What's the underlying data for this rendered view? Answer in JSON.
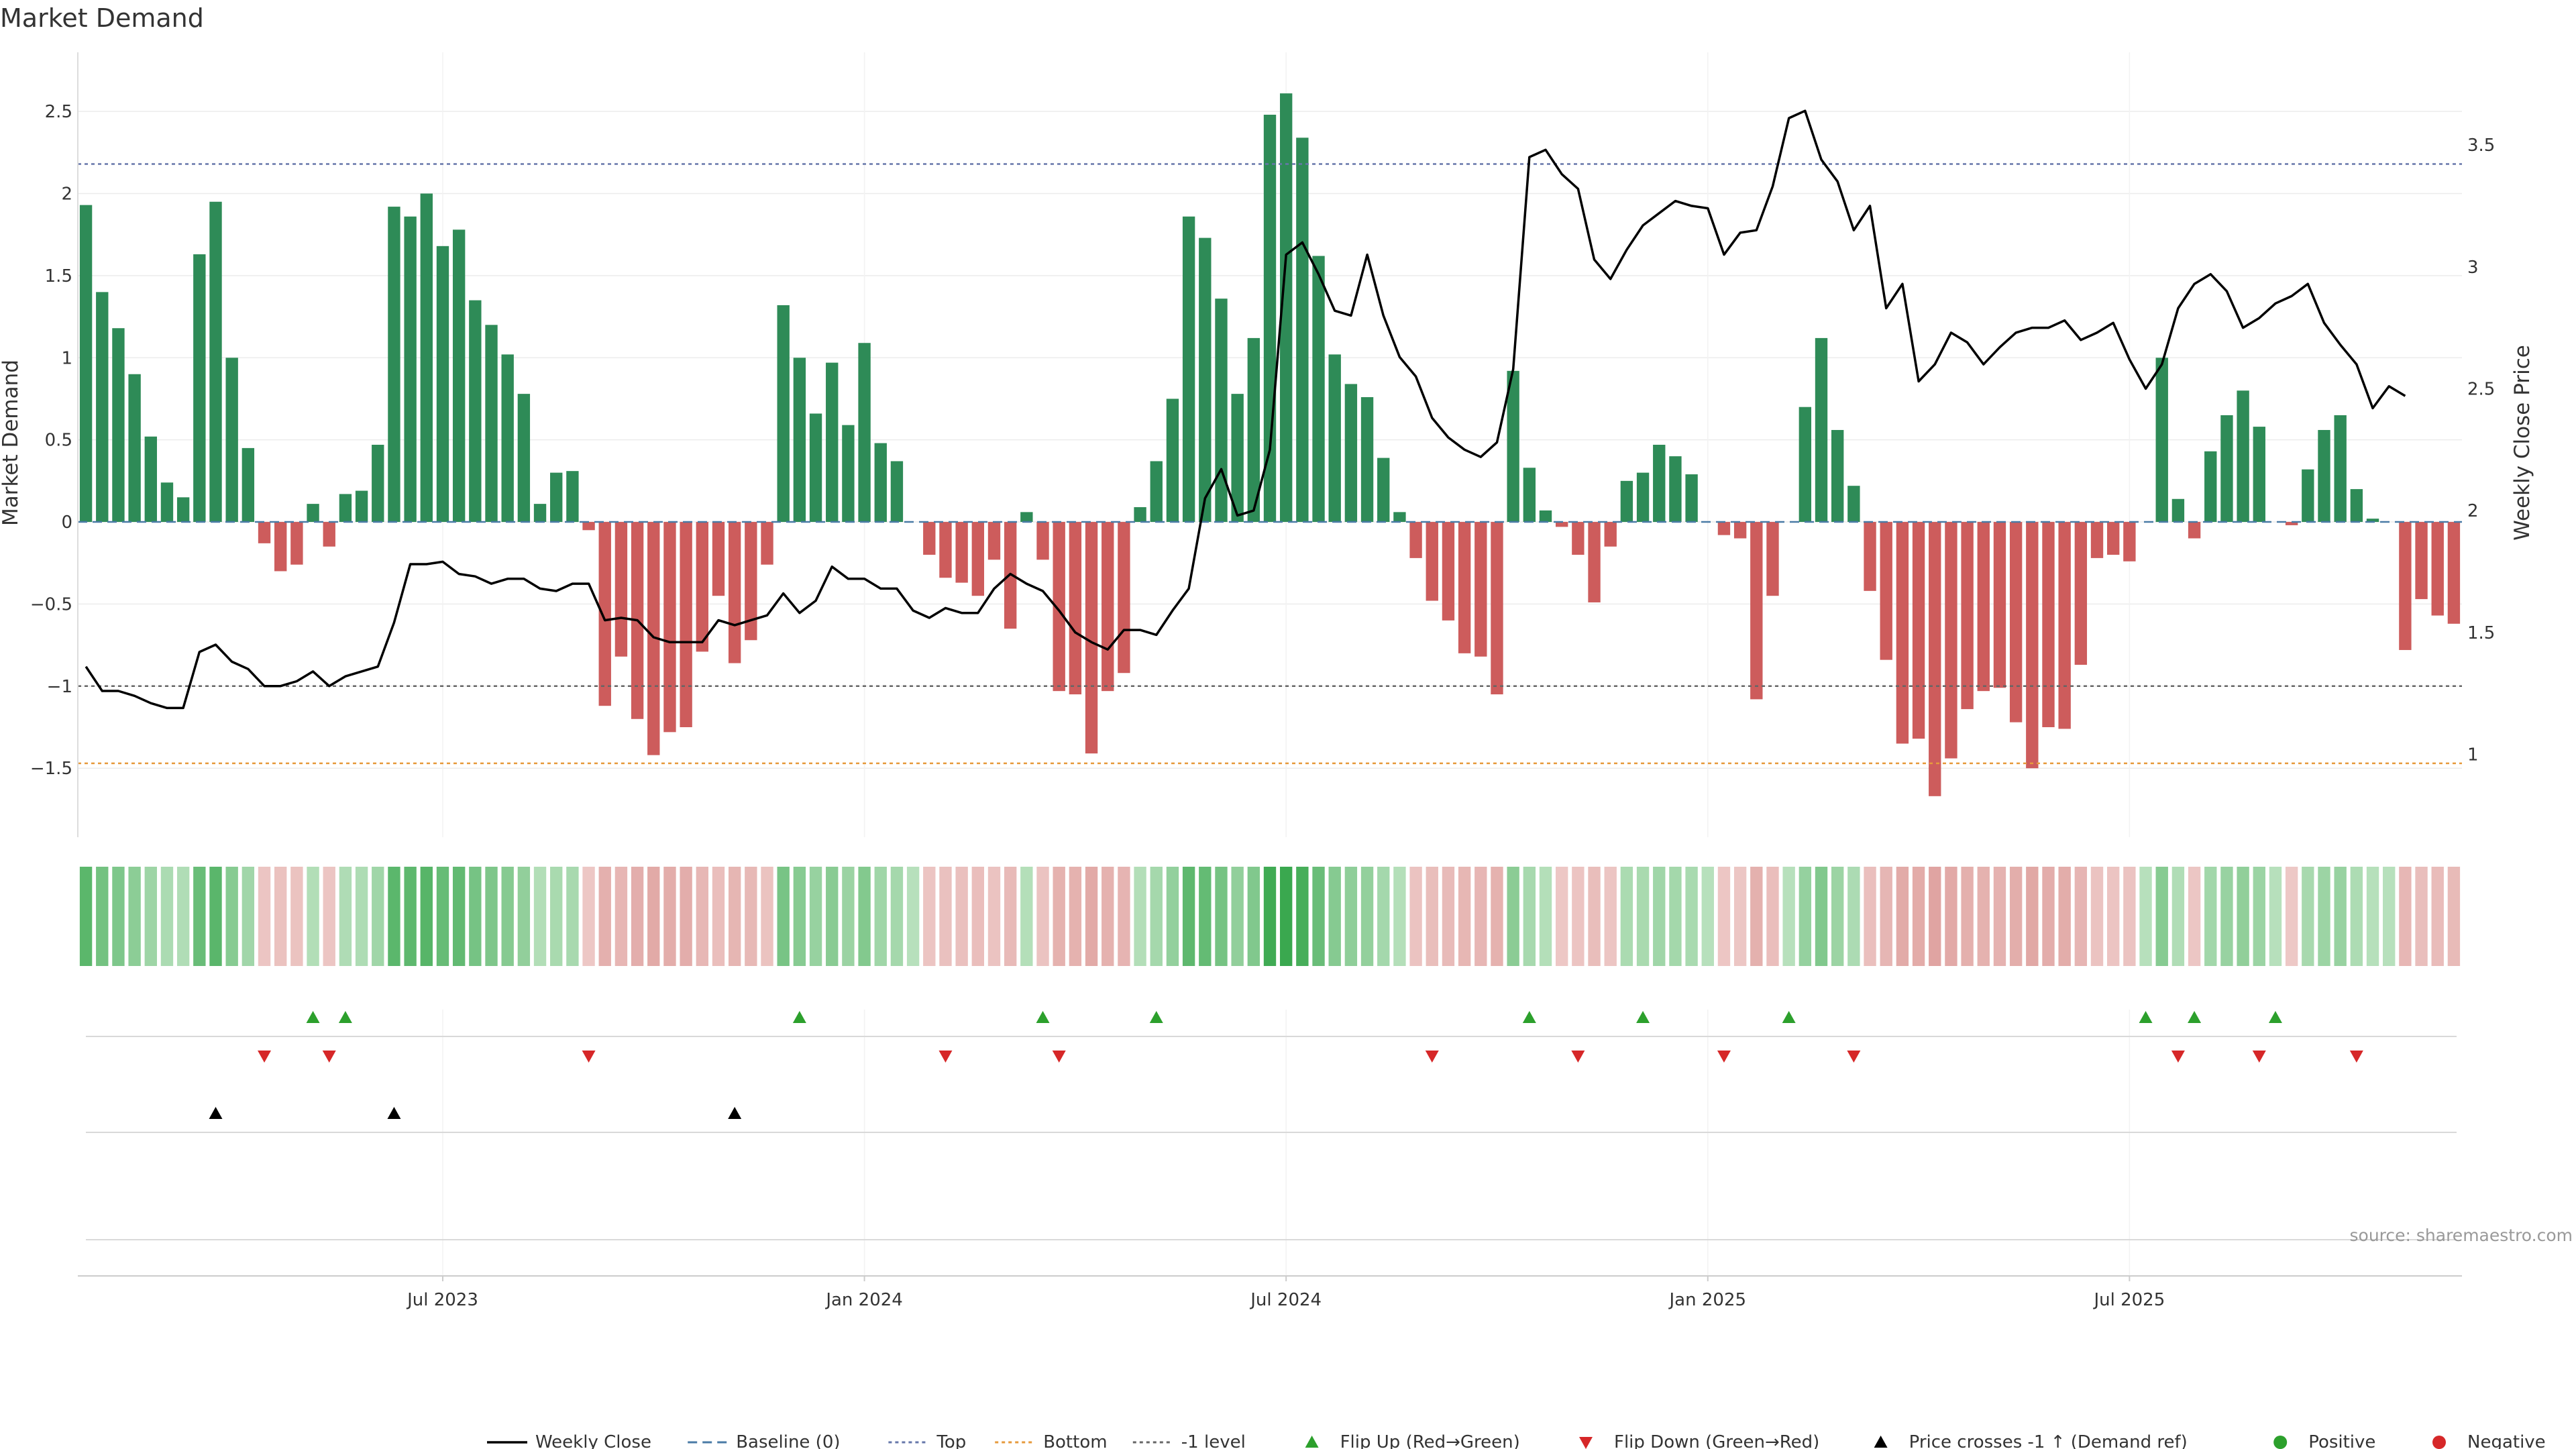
{
  "chart_data": {
    "type": "bar+line",
    "title": "Market Demand",
    "ylabel_left": "Market Demand",
    "ylabel_right": "Weekly Close Price",
    "left_ylim": [
      -1.92,
      2.86
    ],
    "right_ylim": [
      0.66,
      3.88
    ],
    "left_ticks": [
      2.5,
      2,
      1.5,
      1,
      0.5,
      0,
      -0.5,
      -1,
      -1.5
    ],
    "left_tick_labels": [
      "2.5",
      "2",
      "1.5",
      "1",
      "0.5",
      "0",
      "−0.5",
      "−1",
      "−1.5"
    ],
    "right_ticks": [
      3.5,
      3,
      2.5,
      2,
      1.5,
      1
    ],
    "right_tick_labels": [
      "3.5",
      "3",
      "2.5",
      "2",
      "1.5",
      "1"
    ],
    "reference_lines": {
      "baseline": 0,
      "top": 2.18,
      "bottom": -1.47,
      "minus_one_level": -1
    },
    "x_tick_indices": [
      22,
      48,
      74,
      100,
      126
    ],
    "x_tick_labels": [
      "Jul 2023",
      "Jan 2024",
      "Jul 2024",
      "Jan 2025",
      "Jul 2025"
    ],
    "demand": [
      1.93,
      1.4,
      1.18,
      0.9,
      0.52,
      0.24,
      0.15,
      1.63,
      1.95,
      1.0,
      0.45,
      -0.13,
      -0.3,
      -0.26,
      0.11,
      -0.15,
      0.17,
      0.19,
      0.47,
      1.92,
      1.86,
      2.0,
      1.68,
      1.78,
      1.35,
      1.2,
      1.02,
      0.78,
      0.11,
      0.3,
      0.31,
      -0.05,
      -1.12,
      -0.82,
      -1.2,
      -1.42,
      -1.28,
      -1.25,
      -0.79,
      -0.45,
      -0.86,
      -0.72,
      -0.26,
      1.32,
      1.0,
      0.66,
      0.97,
      0.59,
      1.09,
      0.48,
      0.37,
      0.0,
      -0.2,
      -0.34,
      -0.37,
      -0.45,
      -0.23,
      -0.65,
      0.06,
      -0.23,
      -1.03,
      -1.05,
      -1.41,
      -1.03,
      -0.92,
      0.09,
      0.37,
      0.75,
      1.86,
      1.73,
      1.36,
      0.78,
      1.12,
      2.48,
      2.61,
      2.34,
      1.62,
      1.02,
      0.84,
      0.76,
      0.39,
      0.06,
      -0.22,
      -0.48,
      -0.6,
      -0.8,
      -0.82,
      -1.05,
      0.92,
      0.33,
      0.07,
      -0.03,
      -0.2,
      -0.49,
      -0.15,
      0.25,
      0.3,
      0.47,
      0.4,
      0.29,
      0.0,
      -0.08,
      -0.1,
      -1.08,
      -0.45,
      0.0,
      0.7,
      1.12,
      0.56,
      0.22,
      -0.42,
      -0.84,
      -1.35,
      -1.32,
      -1.67,
      -1.44,
      -1.14,
      -1.03,
      -1.01,
      -1.22,
      -1.5,
      -1.25,
      -1.26,
      -0.87,
      -0.22,
      -0.2,
      -0.24,
      0.0,
      1.0,
      0.14,
      -0.1,
      0.43,
      0.65,
      0.8,
      0.58,
      0.0,
      -0.02,
      0.32,
      0.56,
      0.65,
      0.2,
      0.02,
      0.0,
      -0.78,
      -0.47,
      -0.57,
      -0.62
    ],
    "close": [
      1.36,
      1.26,
      1.26,
      1.24,
      1.21,
      1.19,
      1.19,
      1.42,
      1.45,
      1.38,
      1.35,
      1.28,
      1.28,
      1.3,
      1.34,
      1.28,
      1.32,
      1.34,
      1.36,
      1.54,
      1.78,
      1.78,
      1.79,
      1.74,
      1.73,
      1.7,
      1.72,
      1.72,
      1.68,
      1.67,
      1.7,
      1.7,
      1.55,
      1.56,
      1.55,
      1.48,
      1.46,
      1.46,
      1.46,
      1.55,
      1.53,
      1.55,
      1.57,
      1.66,
      1.58,
      1.63,
      1.77,
      1.72,
      1.72,
      1.68,
      1.68,
      1.59,
      1.56,
      1.6,
      1.58,
      1.58,
      1.68,
      1.74,
      1.7,
      1.67,
      1.59,
      1.5,
      1.46,
      1.43,
      1.51,
      1.51,
      1.49,
      1.59,
      1.68,
      2.05,
      2.17,
      1.98,
      2.0,
      2.25,
      3.05,
      3.1,
      2.97,
      2.82,
      2.8,
      3.05,
      2.8,
      2.63,
      2.55,
      2.38,
      2.3,
      2.25,
      2.22,
      2.28,
      2.58,
      3.45,
      3.48,
      3.38,
      3.32,
      3.03,
      2.95,
      3.07,
      3.17,
      3.22,
      3.27,
      3.25,
      3.24,
      3.05,
      3.14,
      3.15,
      3.33,
      3.61,
      3.64,
      3.44,
      3.35,
      3.15,
      3.25,
      2.83,
      2.93,
      2.53,
      2.6,
      2.73,
      2.69,
      2.6,
      2.67,
      2.73,
      2.75,
      2.75,
      2.78,
      2.7,
      2.73,
      2.77,
      2.62,
      2.5,
      2.6,
      2.83,
      2.93,
      2.97,
      2.9,
      2.75,
      2.79,
      2.85,
      2.88,
      2.93,
      2.77,
      2.68,
      2.6,
      2.42,
      2.51,
      2.47
    ],
    "colors": {
      "positive_bar": "#2e8b57",
      "negative_bar": "#cd5c5c",
      "close_line": "#000000",
      "baseline": "#4a7ba6",
      "top_line": "#6677aa",
      "bottom_line": "#e69a3c",
      "minus_one_line": "#666666",
      "flip_up": "#2ca02c",
      "flip_down": "#d62728",
      "price_cross": "#000000",
      "positive_dot": "#2ca02c",
      "negative_dot": "#d62728"
    },
    "flip_up_indices": [
      14,
      16,
      44,
      59,
      66,
      89,
      96,
      105,
      127,
      130,
      135
    ],
    "flip_down_indices": [
      11,
      15,
      31,
      53,
      60,
      83,
      92,
      101,
      109,
      129,
      134,
      140
    ],
    "price_cross_indices": [
      8,
      19,
      40
    ],
    "legend": [
      {
        "label": "Weekly Close",
        "kind": "line",
        "color": "#000000"
      },
      {
        "label": "Baseline (0)",
        "kind": "dash",
        "color": "#4a7ba6"
      },
      {
        "label": "Top",
        "kind": "dot",
        "color": "#6677aa"
      },
      {
        "label": "Bottom",
        "kind": "dot",
        "color": "#e69a3c"
      },
      {
        "label": "-1 level",
        "kind": "dot",
        "color": "#666666"
      },
      {
        "label": "Flip Up (Red→Green)",
        "kind": "tri-up",
        "color": "#2ca02c"
      },
      {
        "label": "Flip Down (Green→Red)",
        "kind": "tri-down",
        "color": "#d62728"
      },
      {
        "label": "Price crosses -1 ↑ (Demand ref)",
        "kind": "tri-up",
        "color": "#000000"
      },
      {
        "label": "Positive",
        "kind": "dot-marker",
        "color": "#2ca02c"
      },
      {
        "label": "Negative",
        "kind": "dot-marker",
        "color": "#d62728"
      }
    ]
  },
  "source_text": "source: sharemaestro.com"
}
